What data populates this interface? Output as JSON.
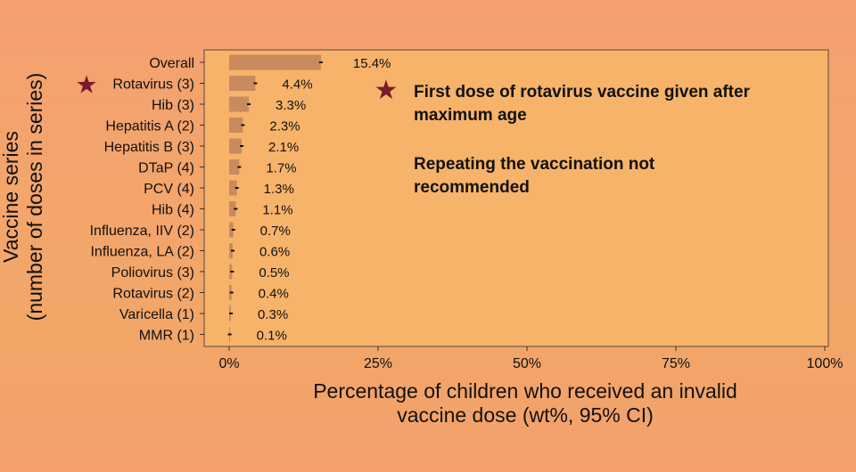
{
  "chart_data": {
    "type": "bar",
    "orientation": "horizontal",
    "xlabel": [
      "Percentage of children who received an invalid",
      "vaccine dose (wt%, 95% CI)"
    ],
    "ylabel": [
      "Vaccine series",
      "(number of doses in series)"
    ],
    "xlim": [
      0,
      100
    ],
    "xticks": [
      0,
      25,
      50,
      75,
      100
    ],
    "xtick_labels": [
      "0%",
      "25%",
      "50%",
      "75%",
      "100%"
    ],
    "categories": [
      "Overall",
      "Rotavirus (3)",
      "Hib (3)",
      "Hepatitis A (2)",
      "Hepatitis B (3)",
      "DTaP (4)",
      "PCV (4)",
      "Hib (4)",
      "Influenza, IIV (2)",
      "Influenza, LA (2)",
      "Poliovirus (3)",
      "Rotavirus (2)",
      "Varicella (1)",
      "MMR (1)"
    ],
    "values": [
      15.4,
      4.4,
      3.3,
      2.3,
      2.1,
      1.7,
      1.3,
      1.1,
      0.7,
      0.6,
      0.5,
      0.4,
      0.3,
      0.1
    ],
    "value_labels": [
      "15.4%",
      "4.4%",
      "3.3%",
      "2.3%",
      "2.1%",
      "1.7%",
      "1.3%",
      "1.1%",
      "0.7%",
      "0.6%",
      "0.5%",
      "0.4%",
      "0.3%",
      "0.1%"
    ],
    "highlighted_category_index": 1,
    "annotation": {
      "lines": [
        "First dose of rotavirus vaccine given after",
        "maximum age",
        "",
        "Repeating the vaccination not",
        "recommended"
      ],
      "marker": "star-icon"
    },
    "colors": {
      "bar": "#c98a5e",
      "star": "#7a1a2a",
      "text": "#111111",
      "panel": "#f7b36a"
    },
    "grid": false
  }
}
